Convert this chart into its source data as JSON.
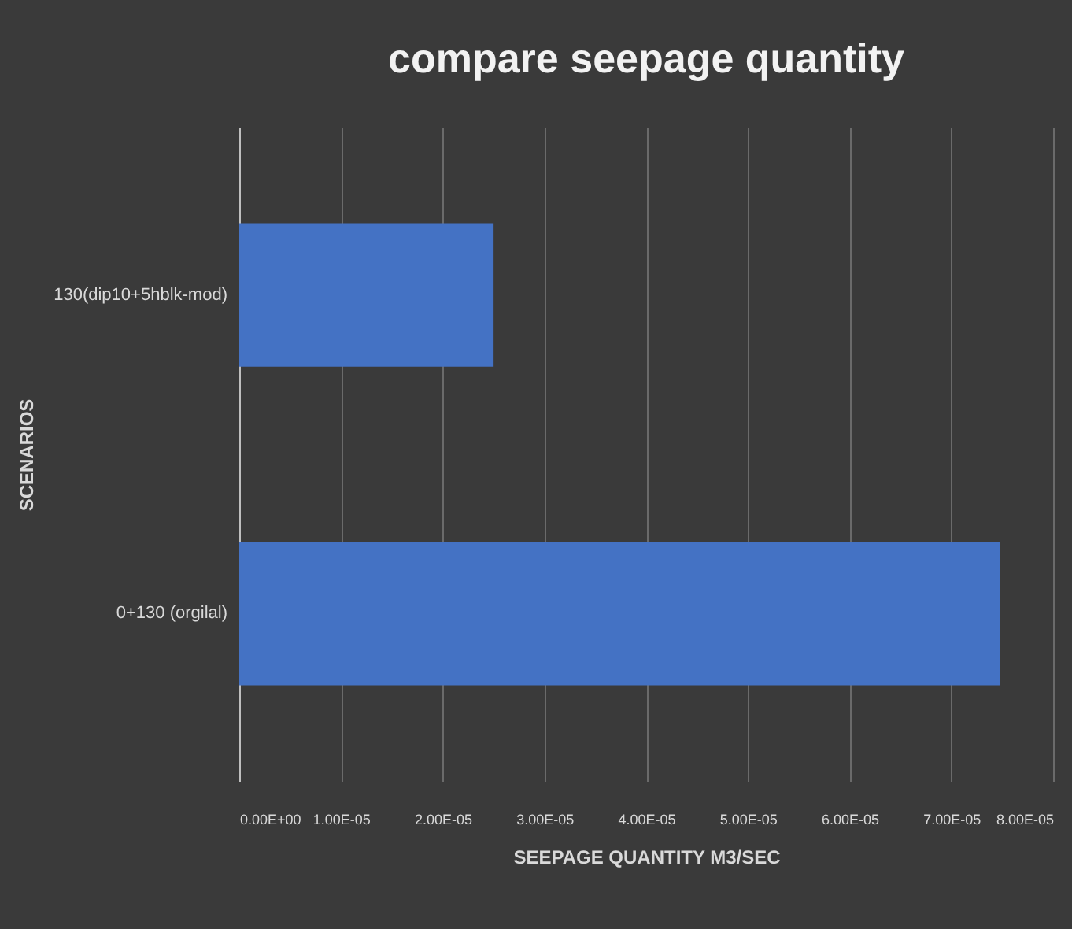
{
  "chart_data": {
    "type": "bar",
    "orientation": "horizontal",
    "title": "compare seepage quantity",
    "xlabel": "SEEPAGE QUANTITY M3/SEC",
    "ylabel": "SCENARIOS",
    "categories": [
      "130(dip10+5hblk-mod)",
      "0+130 (orgilal)"
    ],
    "values": [
      2.5e-05,
      7.48e-05
    ],
    "color": "#4472c4",
    "xlim": [
      0,
      8e-05
    ],
    "xticks": [
      {
        "value": 0,
        "label": "0.00E+00"
      },
      {
        "value": 1e-05,
        "label": "1.00E-05"
      },
      {
        "value": 2e-05,
        "label": "2.00E-05"
      },
      {
        "value": 3e-05,
        "label": "3.00E-05"
      },
      {
        "value": 4e-05,
        "label": "4.00E-05"
      },
      {
        "value": 5e-05,
        "label": "5.00E-05"
      },
      {
        "value": 6e-05,
        "label": "6.00E-05"
      },
      {
        "value": 7e-05,
        "label": "7.00E-05"
      },
      {
        "value": 8e-05,
        "label": "8.00E-05"
      }
    ],
    "grid": "x"
  }
}
